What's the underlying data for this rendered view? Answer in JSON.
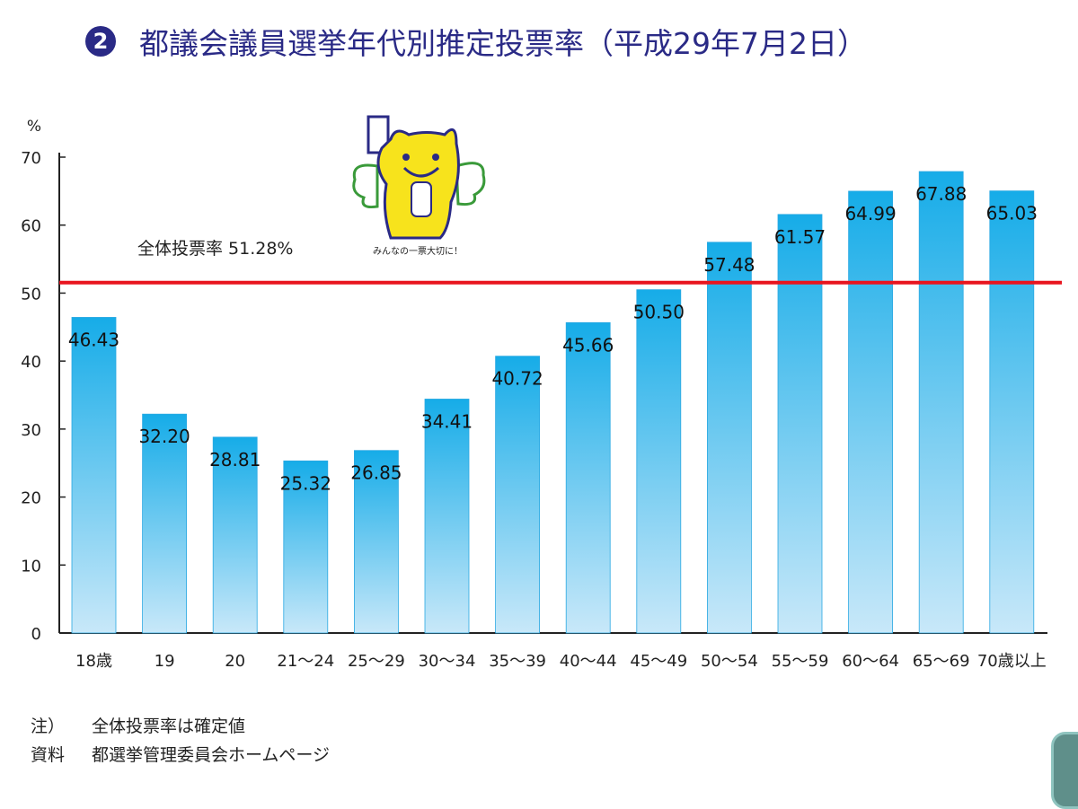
{
  "title": {
    "number": "2",
    "text": "都議会議員選挙年代別推定投票率（平成29年7月2日）"
  },
  "chart_data": {
    "type": "bar",
    "title": "都議会議員選挙年代別推定投票率（平成29年7月2日）",
    "ylabel": "%",
    "ylim": [
      0,
      70
    ],
    "yticks": [
      0,
      10,
      20,
      30,
      40,
      50,
      60,
      70
    ],
    "grid": false,
    "categories": [
      "18歳",
      "19",
      "20",
      "21～24",
      "25～29",
      "30～34",
      "35～39",
      "40～44",
      "45～49",
      "50～54",
      "55～59",
      "60～64",
      "65～69",
      "70歳以上"
    ],
    "values": [
      46.43,
      32.2,
      28.81,
      25.32,
      26.85,
      34.41,
      40.72,
      45.66,
      50.5,
      57.48,
      61.57,
      64.99,
      67.88,
      65.03
    ],
    "value_labels": [
      "46.43",
      "32.20",
      "28.81",
      "25.32",
      "26.85",
      "34.41",
      "40.72",
      "45.66",
      "50.50",
      "57.48",
      "61.57",
      "64.99",
      "67.88",
      "65.03"
    ],
    "reference_line": {
      "value": 51.28,
      "label": "全体投票率 51.28%",
      "color": "#e8141e"
    },
    "bar_color_top": "#16ace8",
    "bar_color_bottom": "#c8e8f9"
  },
  "mascot": {
    "caption": "みんなの一票大切に！"
  },
  "notes": [
    {
      "key": "注）",
      "text": "全体投票率は確定値"
    },
    {
      "key": "資料",
      "text": "都選挙管理委員会ホームページ"
    }
  ]
}
